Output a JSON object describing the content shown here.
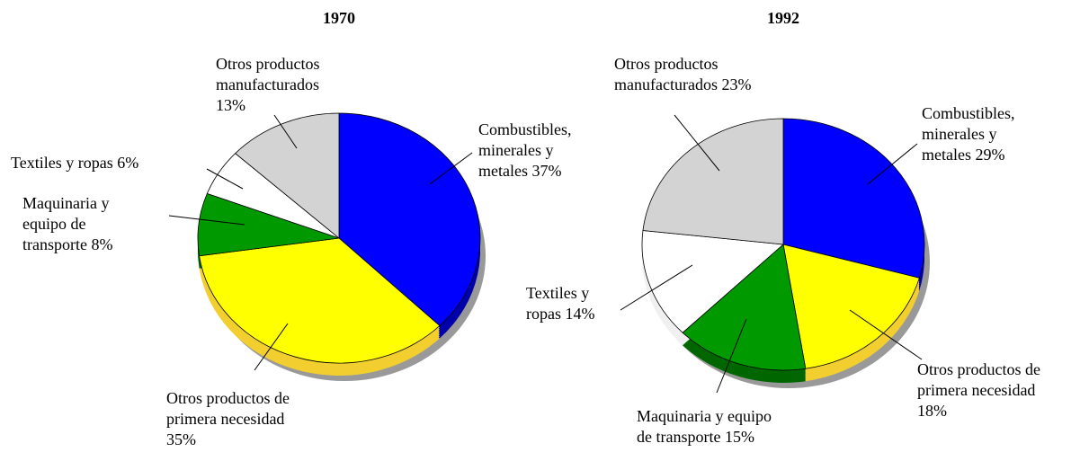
{
  "chart_data": [
    {
      "type": "pie",
      "title": "1970",
      "categories": [
        "Combustibles, minerales y metales",
        "Otros productos de primera necesidad",
        "Maquinaria y equipo de transporte",
        "Textiles y ropas",
        "Otros productos manufacturados"
      ],
      "values": [
        37,
        35,
        8,
        6,
        13
      ],
      "value_labels": [
        "37%",
        "35%",
        "8%",
        "6%",
        "13%"
      ],
      "colors": [
        "#0000ff",
        "#ffff00",
        "#009900",
        "#ffffff",
        "#d3d3d3"
      ]
    },
    {
      "type": "pie",
      "title": "1992",
      "categories": [
        "Combustibles, minerales y metales",
        "Otros productos de primera necesidad",
        "Maquinaria y equipo de transporte",
        "Textiles y ropas",
        "Otros  productos manufacturados"
      ],
      "values": [
        29,
        18,
        15,
        14,
        23
      ],
      "value_labels": [
        "29%",
        "18%",
        "15%",
        "14%",
        "23%"
      ],
      "colors": [
        "#0000ff",
        "#ffff00",
        "#009900",
        "#ffffff",
        "#d3d3d3"
      ]
    }
  ]
}
